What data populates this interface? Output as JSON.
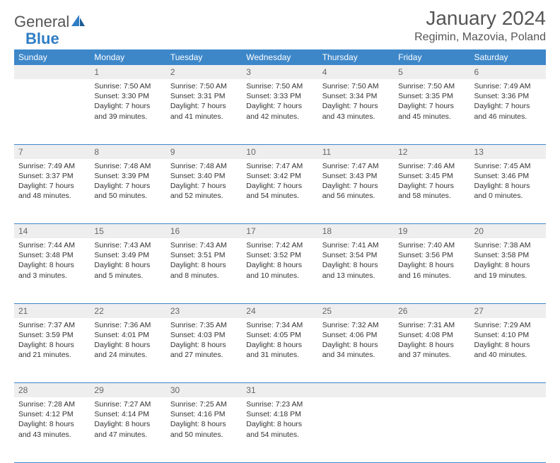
{
  "logo": {
    "text1": "General",
    "text2": "Blue"
  },
  "title": "January 2024",
  "location": "Regimin, Mazovia, Poland",
  "colors": {
    "header_bg": "#3d87c9",
    "header_text": "#ffffff",
    "daynum_bg": "#eeeeee",
    "daynum_text": "#666666",
    "cell_text": "#333333",
    "rule": "#3d87c9",
    "logo_gray": "#555555",
    "logo_blue": "#2f7dc4"
  },
  "day_labels": [
    "Sunday",
    "Monday",
    "Tuesday",
    "Wednesday",
    "Thursday",
    "Friday",
    "Saturday"
  ],
  "weeks": [
    [
      {
        "n": "",
        "sunrise": "",
        "sunset": "",
        "daylight": ""
      },
      {
        "n": "1",
        "sunrise": "7:50 AM",
        "sunset": "3:30 PM",
        "daylight": "Daylight: 7 hours and 39 minutes."
      },
      {
        "n": "2",
        "sunrise": "7:50 AM",
        "sunset": "3:31 PM",
        "daylight": "Daylight: 7 hours and 41 minutes."
      },
      {
        "n": "3",
        "sunrise": "7:50 AM",
        "sunset": "3:33 PM",
        "daylight": "Daylight: 7 hours and 42 minutes."
      },
      {
        "n": "4",
        "sunrise": "7:50 AM",
        "sunset": "3:34 PM",
        "daylight": "Daylight: 7 hours and 43 minutes."
      },
      {
        "n": "5",
        "sunrise": "7:50 AM",
        "sunset": "3:35 PM",
        "daylight": "Daylight: 7 hours and 45 minutes."
      },
      {
        "n": "6",
        "sunrise": "7:49 AM",
        "sunset": "3:36 PM",
        "daylight": "Daylight: 7 hours and 46 minutes."
      }
    ],
    [
      {
        "n": "7",
        "sunrise": "7:49 AM",
        "sunset": "3:37 PM",
        "daylight": "Daylight: 7 hours and 48 minutes."
      },
      {
        "n": "8",
        "sunrise": "7:48 AM",
        "sunset": "3:39 PM",
        "daylight": "Daylight: 7 hours and 50 minutes."
      },
      {
        "n": "9",
        "sunrise": "7:48 AM",
        "sunset": "3:40 PM",
        "daylight": "Daylight: 7 hours and 52 minutes."
      },
      {
        "n": "10",
        "sunrise": "7:47 AM",
        "sunset": "3:42 PM",
        "daylight": "Daylight: 7 hours and 54 minutes."
      },
      {
        "n": "11",
        "sunrise": "7:47 AM",
        "sunset": "3:43 PM",
        "daylight": "Daylight: 7 hours and 56 minutes."
      },
      {
        "n": "12",
        "sunrise": "7:46 AM",
        "sunset": "3:45 PM",
        "daylight": "Daylight: 7 hours and 58 minutes."
      },
      {
        "n": "13",
        "sunrise": "7:45 AM",
        "sunset": "3:46 PM",
        "daylight": "Daylight: 8 hours and 0 minutes."
      }
    ],
    [
      {
        "n": "14",
        "sunrise": "7:44 AM",
        "sunset": "3:48 PM",
        "daylight": "Daylight: 8 hours and 3 minutes."
      },
      {
        "n": "15",
        "sunrise": "7:43 AM",
        "sunset": "3:49 PM",
        "daylight": "Daylight: 8 hours and 5 minutes."
      },
      {
        "n": "16",
        "sunrise": "7:43 AM",
        "sunset": "3:51 PM",
        "daylight": "Daylight: 8 hours and 8 minutes."
      },
      {
        "n": "17",
        "sunrise": "7:42 AM",
        "sunset": "3:52 PM",
        "daylight": "Daylight: 8 hours and 10 minutes."
      },
      {
        "n": "18",
        "sunrise": "7:41 AM",
        "sunset": "3:54 PM",
        "daylight": "Daylight: 8 hours and 13 minutes."
      },
      {
        "n": "19",
        "sunrise": "7:40 AM",
        "sunset": "3:56 PM",
        "daylight": "Daylight: 8 hours and 16 minutes."
      },
      {
        "n": "20",
        "sunrise": "7:38 AM",
        "sunset": "3:58 PM",
        "daylight": "Daylight: 8 hours and 19 minutes."
      }
    ],
    [
      {
        "n": "21",
        "sunrise": "7:37 AM",
        "sunset": "3:59 PM",
        "daylight": "Daylight: 8 hours and 21 minutes."
      },
      {
        "n": "22",
        "sunrise": "7:36 AM",
        "sunset": "4:01 PM",
        "daylight": "Daylight: 8 hours and 24 minutes."
      },
      {
        "n": "23",
        "sunrise": "7:35 AM",
        "sunset": "4:03 PM",
        "daylight": "Daylight: 8 hours and 27 minutes."
      },
      {
        "n": "24",
        "sunrise": "7:34 AM",
        "sunset": "4:05 PM",
        "daylight": "Daylight: 8 hours and 31 minutes."
      },
      {
        "n": "25",
        "sunrise": "7:32 AM",
        "sunset": "4:06 PM",
        "daylight": "Daylight: 8 hours and 34 minutes."
      },
      {
        "n": "26",
        "sunrise": "7:31 AM",
        "sunset": "4:08 PM",
        "daylight": "Daylight: 8 hours and 37 minutes."
      },
      {
        "n": "27",
        "sunrise": "7:29 AM",
        "sunset": "4:10 PM",
        "daylight": "Daylight: 8 hours and 40 minutes."
      }
    ],
    [
      {
        "n": "28",
        "sunrise": "7:28 AM",
        "sunset": "4:12 PM",
        "daylight": "Daylight: 8 hours and 43 minutes."
      },
      {
        "n": "29",
        "sunrise": "7:27 AM",
        "sunset": "4:14 PM",
        "daylight": "Daylight: 8 hours and 47 minutes."
      },
      {
        "n": "30",
        "sunrise": "7:25 AM",
        "sunset": "4:16 PM",
        "daylight": "Daylight: 8 hours and 50 minutes."
      },
      {
        "n": "31",
        "sunrise": "7:23 AM",
        "sunset": "4:18 PM",
        "daylight": "Daylight: 8 hours and 54 minutes."
      },
      {
        "n": "",
        "sunrise": "",
        "sunset": "",
        "daylight": ""
      },
      {
        "n": "",
        "sunrise": "",
        "sunset": "",
        "daylight": ""
      },
      {
        "n": "",
        "sunrise": "",
        "sunset": "",
        "daylight": ""
      }
    ]
  ],
  "labels": {
    "sunrise_prefix": "Sunrise: ",
    "sunset_prefix": "Sunset: "
  }
}
